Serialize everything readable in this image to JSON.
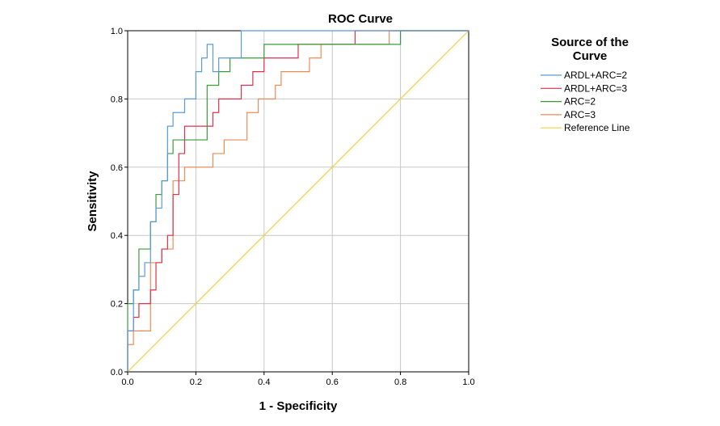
{
  "chart_data": {
    "type": "line",
    "title": "ROC Curve",
    "xlabel": "1 - Specificity",
    "ylabel": "Sensitivity",
    "xlim": [
      0,
      1
    ],
    "ylim": [
      0,
      1
    ],
    "x_ticks": [
      "0.0",
      "0.2",
      "0.4",
      "0.6",
      "0.8",
      "1.0"
    ],
    "y_ticks": [
      "0.0",
      "0.2",
      "0.4",
      "0.6",
      "0.8",
      "1.0"
    ],
    "grid": true,
    "legend": {
      "title_line1": "Source of the",
      "title_line2": "Curve",
      "position": "right"
    },
    "series": [
      {
        "name": "ARDL+ARC=2",
        "color": "#5b9bd5",
        "x": [
          0,
          0,
          0.017,
          0.017,
          0.033,
          0.033,
          0.05,
          0.05,
          0.067,
          0.067,
          0.083,
          0.083,
          0.1,
          0.1,
          0.117,
          0.117,
          0.133,
          0.133,
          0.167,
          0.167,
          0.2,
          0.2,
          0.217,
          0.217,
          0.233,
          0.233,
          0.25,
          0.25,
          0.267,
          0.267,
          0.333,
          0.333,
          1
        ],
        "y": [
          0,
          0.12,
          0.12,
          0.24,
          0.24,
          0.28,
          0.28,
          0.32,
          0.32,
          0.44,
          0.44,
          0.48,
          0.48,
          0.56,
          0.56,
          0.72,
          0.72,
          0.76,
          0.76,
          0.8,
          0.8,
          0.88,
          0.88,
          0.92,
          0.92,
          0.96,
          0.96,
          0.88,
          0.88,
          0.92,
          0.92,
          1.0,
          1.0
        ]
      },
      {
        "name": "ARDL+ARC=3",
        "color": "#e0314b",
        "x": [
          0,
          0,
          0.017,
          0.017,
          0.033,
          0.033,
          0.067,
          0.067,
          0.083,
          0.083,
          0.1,
          0.1,
          0.117,
          0.117,
          0.133,
          0.133,
          0.15,
          0.15,
          0.167,
          0.167,
          0.25,
          0.25,
          0.267,
          0.267,
          0.333,
          0.333,
          0.367,
          0.367,
          0.4,
          0.4,
          0.5,
          0.5,
          0.667,
          0.667,
          1
        ],
        "y": [
          0,
          0.12,
          0.12,
          0.16,
          0.16,
          0.2,
          0.2,
          0.24,
          0.24,
          0.32,
          0.32,
          0.36,
          0.36,
          0.4,
          0.4,
          0.52,
          0.52,
          0.64,
          0.64,
          0.72,
          0.72,
          0.76,
          0.76,
          0.8,
          0.8,
          0.84,
          0.84,
          0.88,
          0.88,
          0.92,
          0.92,
          0.96,
          0.96,
          1.0,
          1.0
        ]
      },
      {
        "name": "ARC=2",
        "color": "#3a9b3a",
        "x": [
          0,
          0,
          0.017,
          0.017,
          0.033,
          0.033,
          0.067,
          0.067,
          0.083,
          0.083,
          0.1,
          0.1,
          0.117,
          0.117,
          0.133,
          0.133,
          0.233,
          0.233,
          0.267,
          0.267,
          0.3,
          0.3,
          0.4,
          0.4,
          0.55,
          0.55,
          0.8,
          0.8,
          1
        ],
        "y": [
          0,
          0.2,
          0.2,
          0.24,
          0.24,
          0.36,
          0.36,
          0.44,
          0.44,
          0.52,
          0.52,
          0.56,
          0.56,
          0.64,
          0.64,
          0.68,
          0.68,
          0.84,
          0.84,
          0.88,
          0.88,
          0.92,
          0.92,
          0.96,
          0.96,
          0.96,
          0.96,
          1.0,
          1.0
        ]
      },
      {
        "name": "ARC=3",
        "color": "#f08a55",
        "x": [
          0,
          0,
          0.017,
          0.017,
          0.033,
          0.033,
          0.067,
          0.067,
          0.1,
          0.1,
          0.117,
          0.117,
          0.133,
          0.133,
          0.15,
          0.15,
          0.167,
          0.167,
          0.2,
          0.2,
          0.25,
          0.25,
          0.283,
          0.283,
          0.35,
          0.35,
          0.383,
          0.383,
          0.433,
          0.433,
          0.45,
          0.45,
          0.533,
          0.533,
          0.567,
          0.567,
          0.767,
          0.767,
          1
        ],
        "y": [
          0,
          0.08,
          0.08,
          0.12,
          0.12,
          0.12,
          0.12,
          0.32,
          0.32,
          0.36,
          0.36,
          0.36,
          0.36,
          0.56,
          0.56,
          0.56,
          0.56,
          0.6,
          0.6,
          0.6,
          0.6,
          0.64,
          0.64,
          0.68,
          0.68,
          0.76,
          0.76,
          0.8,
          0.8,
          0.84,
          0.84,
          0.88,
          0.88,
          0.92,
          0.92,
          0.96,
          0.96,
          1.0,
          1.0
        ]
      },
      {
        "name": "Reference Line",
        "color": "#f2d13b",
        "x": [
          0,
          1
        ],
        "y": [
          0,
          1
        ]
      }
    ]
  }
}
